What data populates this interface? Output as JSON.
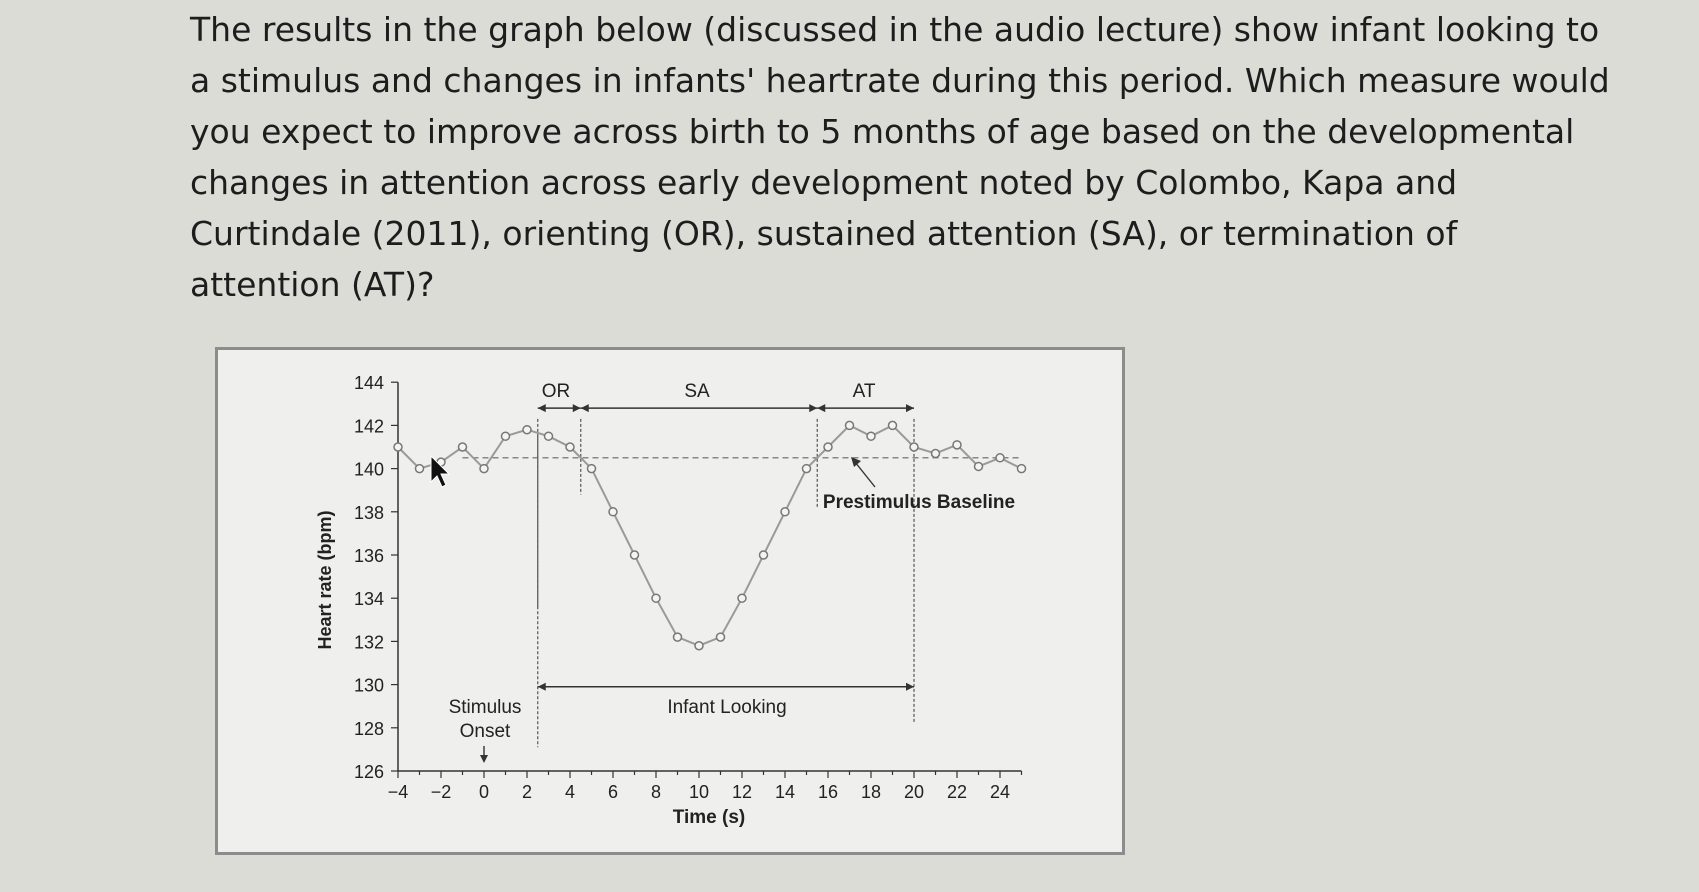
{
  "question": {
    "lines": [
      "The results in the graph below (discussed in the audio lecture) show infant looking to",
      "a stimulus and changes in infants' heartrate during this period. Which measure would",
      "you expect to improve across birth to 5 months of age based on the developmental",
      "changes in attention across early development noted by Colombo, Kapa and",
      "Curtindale (2011), orienting (OR), sustained attention (SA), or termination of",
      "attention (AT)?"
    ]
  },
  "chart_data": {
    "type": "line",
    "xlabel": "Time (s)",
    "ylabel": "Heart rate (bpm)",
    "xlim": [
      -4,
      25
    ],
    "ylim": [
      126,
      144
    ],
    "xticks": [
      -4,
      -2,
      0,
      2,
      4,
      6,
      8,
      10,
      12,
      14,
      16,
      18,
      20,
      22,
      24
    ],
    "xtick_labels": [
      "-4",
      "-2",
      "0",
      "2",
      "4",
      "6",
      "8",
      "10",
      "12",
      "14",
      "16",
      "18",
      "20",
      "22",
      "24"
    ],
    "yticks": [
      126,
      128,
      130,
      132,
      134,
      136,
      138,
      140,
      142,
      144
    ],
    "ytick_labels": [
      "126",
      "128",
      "130",
      "132",
      "134",
      "136",
      "138",
      "140",
      "142",
      "144"
    ],
    "baseline": 140.5,
    "baseline_label": "Prestimulus Baseline",
    "x": [
      -4,
      -3,
      -2,
      -1,
      0,
      1,
      2,
      3,
      4,
      5,
      6,
      7,
      8,
      9,
      10,
      11,
      12,
      13,
      14,
      15,
      16,
      17,
      18,
      19,
      20,
      21,
      22,
      23,
      24,
      25
    ],
    "y": [
      141,
      140,
      140.3,
      141,
      140,
      141.5,
      141.8,
      141.5,
      141,
      140,
      138,
      136,
      134,
      132.2,
      131.8,
      132.2,
      134,
      136,
      138,
      140,
      141,
      142,
      141.5,
      142,
      141,
      140.7,
      141.1,
      140.1,
      140.5,
      140
    ],
    "annotations": {
      "or_label": "OR",
      "sa_label": "SA",
      "at_label": "AT",
      "stimulus_line1": "Stimulus",
      "stimulus_line2": "Onset",
      "looking_label": "Infant Looking"
    },
    "phases": {
      "or_start": 2.5,
      "or_end": 4.5,
      "sa_end": 15.5,
      "at_end": 20
    },
    "looking": {
      "start": 2.5,
      "end": 20
    },
    "stimulus_onset": 0
  }
}
